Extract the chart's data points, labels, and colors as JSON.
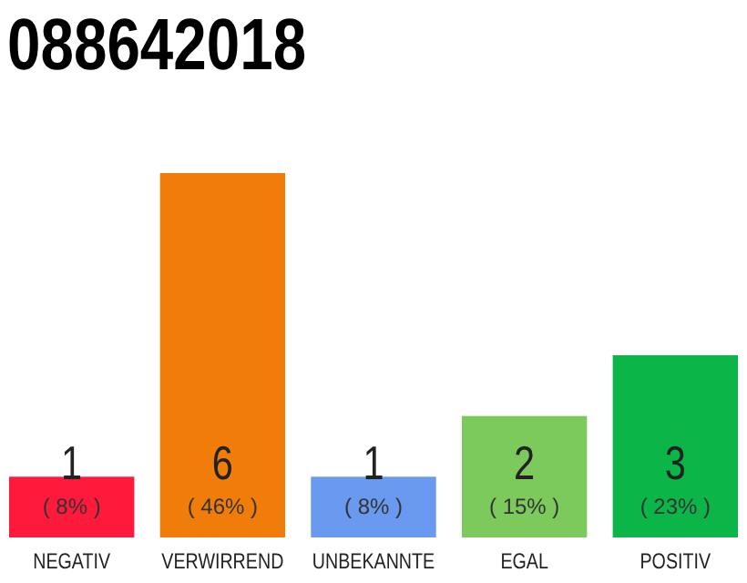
{
  "chart_data": {
    "type": "bar",
    "title": "088642018",
    "categories": [
      "NEGATIV",
      "VERWIRREND",
      "UNBEKANNTE",
      "EGAL",
      "POSITIV"
    ],
    "values": [
      1,
      6,
      1,
      2,
      3
    ],
    "colors": [
      "#ff1a3c",
      "#f07d0a",
      "#6a9af0",
      "#7cc95c",
      "#0cb548"
    ],
    "value_labels": [
      "1\n( 8% )",
      "6\n( 46% )",
      "1\n( 8% )",
      "2\n( 15% )",
      "3\n( 23% )"
    ],
    "ylim": [
      0,
      6
    ],
    "tick_labels": "x"
  }
}
